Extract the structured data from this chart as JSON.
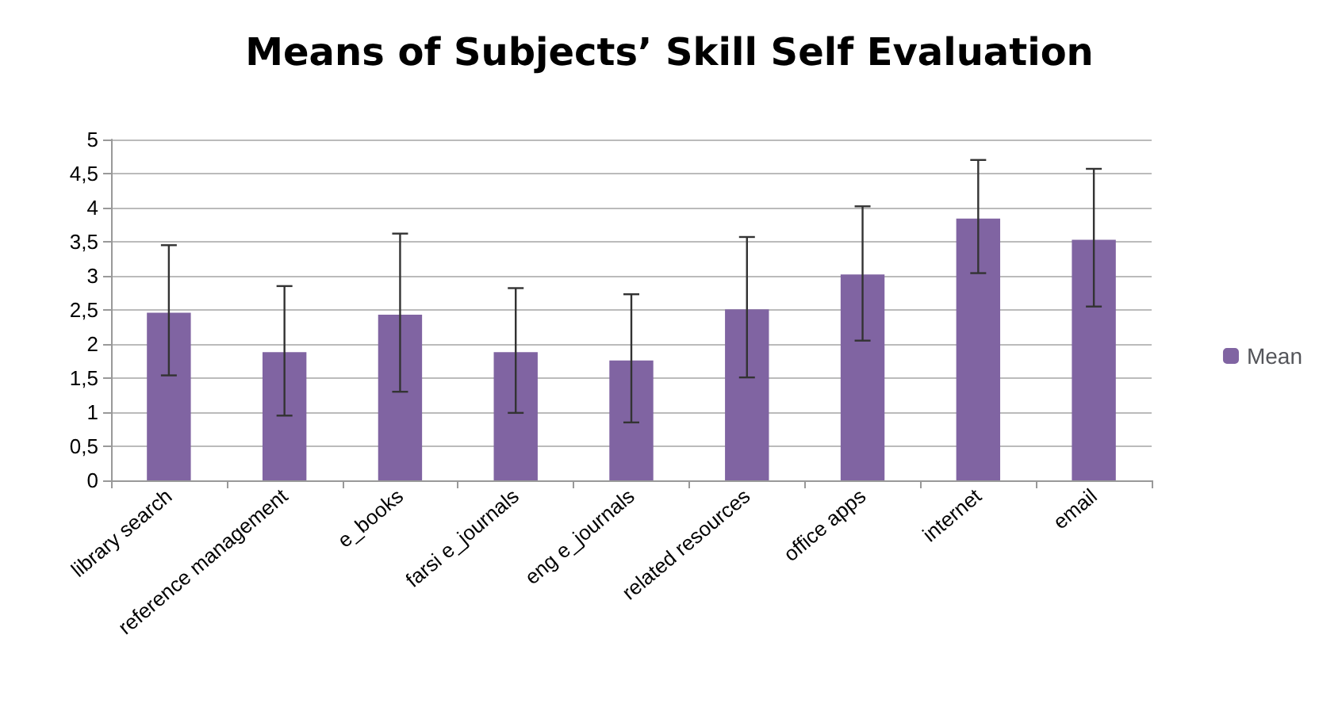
{
  "chart_data": {
    "type": "bar",
    "title": "Means of Subjects’ Skill Self Evaluation",
    "categories": [
      "library search",
      "reference management",
      "e_books",
      "farsi e_journals",
      "eng e_journals",
      "related resources",
      "office apps",
      "internet",
      "email"
    ],
    "series": [
      {
        "name": "Mean",
        "color": "#8064a2",
        "values": [
          2.46,
          1.88,
          2.43,
          1.88,
          1.76,
          2.51,
          3.02,
          3.84,
          3.53
        ],
        "errors": [
          [
            1.54,
            3.45
          ],
          [
            0.95,
            2.85
          ],
          [
            1.3,
            3.62
          ],
          [
            0.99,
            2.82
          ],
          [
            0.85,
            2.73
          ],
          [
            1.51,
            3.57
          ],
          [
            2.05,
            4.02
          ],
          [
            3.04,
            4.7
          ],
          [
            2.55,
            4.57
          ]
        ]
      }
    ],
    "ylim": [
      0,
      5
    ],
    "yticks": [
      0,
      {
        "value": 0.5,
        "label": "0,5"
      },
      1,
      {
        "value": 1.5,
        "label": "1,5"
      },
      2,
      {
        "value": 2.5,
        "label": "2,5"
      },
      3,
      {
        "value": 3.5,
        "label": "3,5"
      },
      4,
      {
        "value": 4.5,
        "label": "4,5"
      },
      5
    ],
    "grid": "y",
    "legend": "right"
  }
}
